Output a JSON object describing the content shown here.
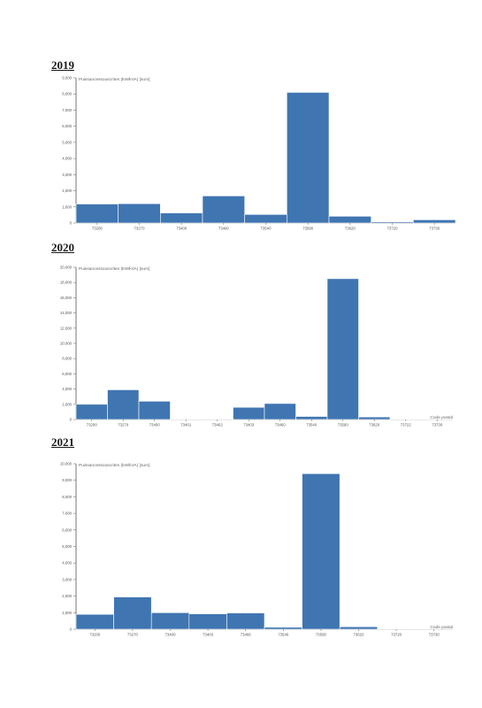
{
  "chart_data": [
    {
      "type": "bar",
      "title": "2019",
      "ylabel": "Puissancessouscrites (kW/kVA) [sum]",
      "xlabel": "",
      "ylim": [
        0,
        9000
      ],
      "yticks": [
        0,
        1000,
        2000,
        3000,
        4000,
        5000,
        6000,
        7000,
        8000,
        9000
      ],
      "ytick_labels": [
        "0",
        "1,000",
        "2,000",
        "3,000",
        "4,000",
        "5,000",
        "6,000",
        "7,000",
        "8,000",
        "9,000"
      ],
      "categories": [
        "73200",
        "73270",
        "73400",
        "73460",
        "73540",
        "73590",
        "73620",
        "73720",
        "73730"
      ],
      "values": [
        1180,
        1200,
        620,
        1680,
        530,
        8100,
        420,
        70,
        200
      ],
      "color": "#3f75b1"
    },
    {
      "type": "bar",
      "title": "2020",
      "ylabel": "Puissancessouscrites (kW/kVA) [sum]",
      "xlabel": "Code postal",
      "ylim": [
        0,
        20000
      ],
      "yticks": [
        0,
        2000,
        4000,
        6000,
        8000,
        10000,
        12000,
        14000,
        16000,
        18000,
        20000
      ],
      "ytick_labels": [
        "0",
        "2,000",
        "4,000",
        "6,000",
        "8,000",
        "10,000",
        "12,000",
        "14,000",
        "16,000",
        "18,000",
        "20,000"
      ],
      "categories": [
        "73200",
        "73270",
        "73400",
        "73401",
        "73402",
        "73403",
        "73460",
        "73540",
        "73590",
        "73620",
        "73722",
        "73730"
      ],
      "values": [
        2000,
        3900,
        2400,
        30,
        20,
        1600,
        2100,
        400,
        18500,
        330,
        40,
        50
      ],
      "color": "#3f75b1"
    },
    {
      "type": "bar",
      "title": "2021",
      "ylabel": "Puissancessouscrites (kW/kVA) [sum]",
      "xlabel": "Code postal",
      "ylim": [
        0,
        10000
      ],
      "yticks": [
        0,
        1000,
        2000,
        3000,
        4000,
        5000,
        6000,
        7000,
        8000,
        9000,
        10000
      ],
      "ytick_labels": [
        "0",
        "1,000",
        "2,000",
        "3,000",
        "4,000",
        "5,000",
        "6,000",
        "7,000",
        "8,000",
        "9,000",
        "10,000"
      ],
      "categories": [
        "73200",
        "73270",
        "73400",
        "73403",
        "73460",
        "73540",
        "73590",
        "73620",
        "73720",
        "73730"
      ],
      "values": [
        900,
        1950,
        1000,
        930,
        980,
        120,
        9400,
        150,
        15,
        10
      ],
      "color": "#3f75b1"
    }
  ]
}
